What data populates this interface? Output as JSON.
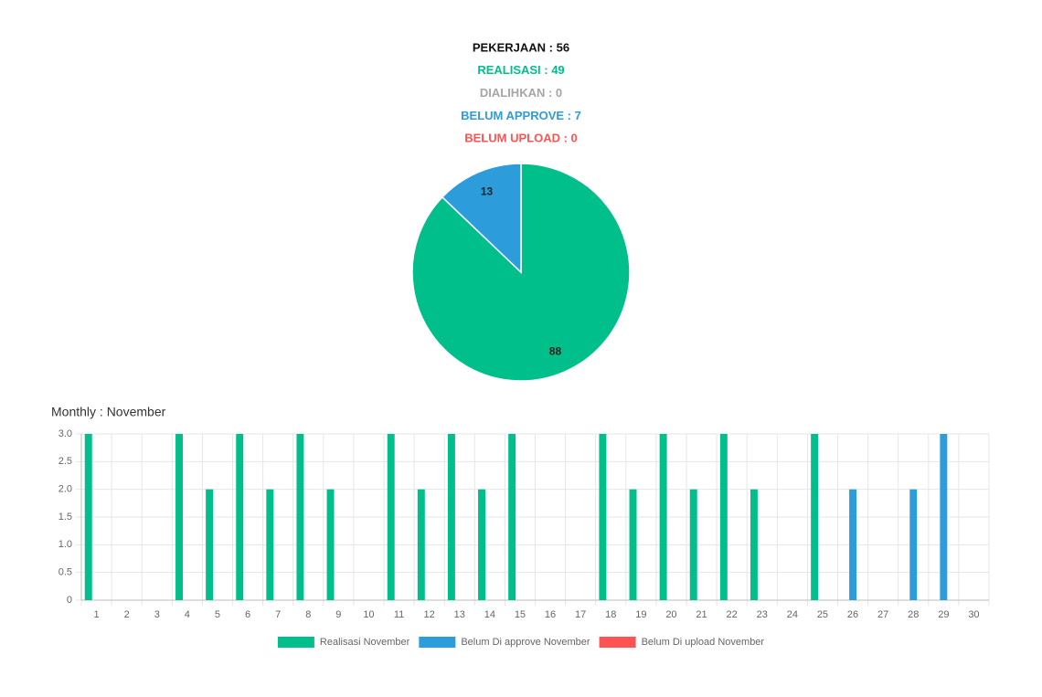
{
  "header": {
    "lines": [
      {
        "text": "PEKERJAAN : 56",
        "color": "#111111"
      },
      {
        "text": "REALISASI : 49",
        "color": "#00bf8a"
      },
      {
        "text": "DIALIHKAN : 0",
        "color": "#a6a6a6"
      },
      {
        "text": "BELUM APPROVE : 7",
        "color": "#2d9cdb"
      },
      {
        "text": "BELUM UPLOAD : 0",
        "color": "#ff5252"
      }
    ]
  },
  "chart_data": [
    {
      "type": "pie",
      "values": [
        88,
        13
      ],
      "colors": [
        "#00bf8a",
        "#2d9cdb"
      ]
    },
    {
      "type": "bar",
      "title": "Monthly : November",
      "categories": [
        "1",
        "2",
        "3",
        "4",
        "5",
        "6",
        "7",
        "8",
        "9",
        "10",
        "11",
        "12",
        "13",
        "14",
        "15",
        "16",
        "17",
        "18",
        "19",
        "20",
        "21",
        "22",
        "23",
        "24",
        "25",
        "26",
        "27",
        "28",
        "29",
        "30"
      ],
      "series": [
        {
          "name": "Realisasi November",
          "color": "#00bf8a",
          "values": [
            3,
            0,
            0,
            3,
            2,
            3,
            2,
            3,
            2,
            0,
            3,
            2,
            3,
            2,
            3,
            0,
            0,
            3,
            2,
            3,
            2,
            3,
            2,
            0,
            3,
            0,
            0,
            0,
            0,
            0
          ]
        },
        {
          "name": "Belum Di approve November",
          "color": "#2d9cdb",
          "values": [
            0,
            0,
            0,
            0,
            0,
            0,
            0,
            0,
            0,
            0,
            0,
            0,
            0,
            0,
            0,
            0,
            0,
            0,
            0,
            0,
            0,
            0,
            0,
            0,
            0,
            2,
            0,
            2,
            3,
            0
          ]
        },
        {
          "name": "Belum Di upload November",
          "color": "#ff5252",
          "values": [
            0,
            0,
            0,
            0,
            0,
            0,
            0,
            0,
            0,
            0,
            0,
            0,
            0,
            0,
            0,
            0,
            0,
            0,
            0,
            0,
            0,
            0,
            0,
            0,
            0,
            0,
            0,
            0,
            0,
            0
          ]
        }
      ],
      "ylim": [
        0,
        3
      ],
      "yticks": [
        0,
        0.5,
        {
          "value": 1,
          "label": "1.0"
        },
        1.5,
        {
          "value": 2,
          "label": "2.0"
        },
        2.5,
        {
          "value": 3,
          "label": "3.0"
        }
      ],
      "grid": true,
      "legend": "bottom"
    }
  ]
}
